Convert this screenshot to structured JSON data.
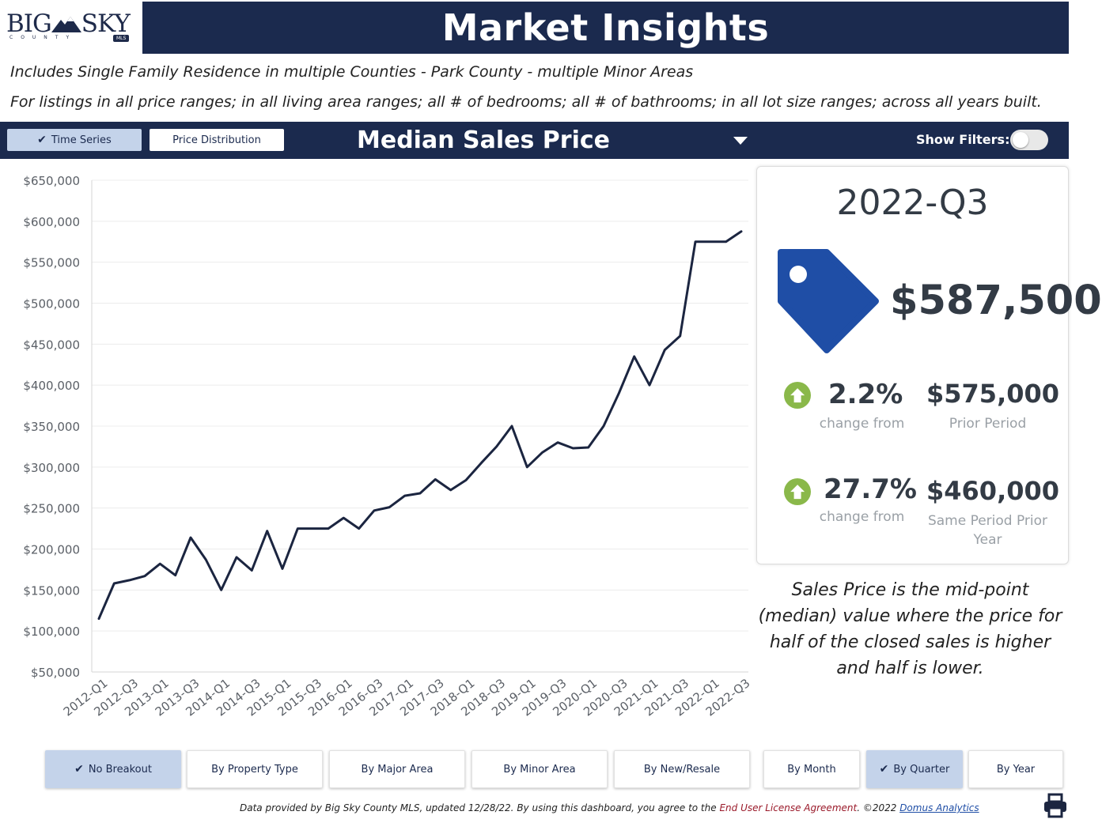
{
  "header": {
    "logo_big": "BIG",
    "logo_sky": "SKY",
    "logo_county": "COUNTY",
    "logo_mls": "MLS",
    "title": "Market Insights"
  },
  "description": {
    "line1": "Includes Single Family Residence in multiple Counties - Park County - multiple Minor Areas",
    "line2": "For listings in all price ranges; in all living area ranges; all # of bedrooms; all # of bathrooms; in all lot size ranges; across all years built."
  },
  "toolbar": {
    "time_series": "Time Series",
    "price_distribution": "Price Distribution",
    "metric": "Median Sales Price",
    "show_filters": "Show Filters:"
  },
  "summary": {
    "period": "2022-Q3",
    "value": "$587,500",
    "change1_pct": "2.2%",
    "change1_label": "change from",
    "change1_ref": "$575,000",
    "change1_ref_label": "Prior Period",
    "change2_pct": "27.7%",
    "change2_label": "change from",
    "change2_ref": "$460,000",
    "change2_ref_label": "Same Period Prior Year",
    "tag_icon": "price-tag-icon",
    "up_icon": "arrow-up-circle-icon",
    "accent": "#1f4ea6",
    "up_color": "#8ab84a"
  },
  "explanation": "Sales Price is the mid-point (median) value where the price for half of the closed sales is higher and half is lower.",
  "breakouts": {
    "no_breakout": "No Breakout",
    "by_property_type": "By Property Type",
    "by_major_area": "By Major Area",
    "by_minor_area": "By Minor Area",
    "by_new_resale": "By New/Resale",
    "by_month": "By Month",
    "by_quarter": "By Quarter",
    "by_year": "By Year"
  },
  "footer": {
    "text": "Data provided by Big Sky County MLS, updated 12/28/22.  By using this dashboard, you agree to the ",
    "license": "End User License Agreement",
    "copyright": ".  ©2022 ",
    "domus": "Domus Analytics",
    "print_icon": "printer-icon"
  },
  "chart_data": {
    "type": "line",
    "title": "",
    "xlabel": "",
    "ylabel": "",
    "ylim": [
      50000,
      650000
    ],
    "yticks": [
      50000,
      100000,
      150000,
      200000,
      250000,
      300000,
      350000,
      400000,
      450000,
      500000,
      550000,
      600000,
      650000
    ],
    "ytick_labels": [
      "$50,000",
      "$100,000",
      "$150,000",
      "$200,000",
      "$250,000",
      "$300,000",
      "$350,000",
      "$400,000",
      "$450,000",
      "$500,000",
      "$550,000",
      "$600,000",
      "$650,000"
    ],
    "xtick_labels": [
      "2012-Q1",
      "2012-Q3",
      "2013-Q1",
      "2013-Q3",
      "2014-Q1",
      "2014-Q3",
      "2015-Q1",
      "2015-Q3",
      "2016-Q1",
      "2016-Q3",
      "2017-Q1",
      "2017-Q3",
      "2018-Q1",
      "2018-Q3",
      "2019-Q1",
      "2019-Q3",
      "2020-Q1",
      "2020-Q3",
      "2021-Q1",
      "2021-Q3",
      "2022-Q1",
      "2022-Q3"
    ],
    "grid": true,
    "line_color": "#1b2540",
    "x": [
      "2012-Q1",
      "2012-Q2",
      "2012-Q3",
      "2012-Q4",
      "2013-Q1",
      "2013-Q2",
      "2013-Q3",
      "2013-Q4",
      "2014-Q1",
      "2014-Q2",
      "2014-Q3",
      "2014-Q4",
      "2015-Q1",
      "2015-Q2",
      "2015-Q3",
      "2015-Q4",
      "2016-Q1",
      "2016-Q2",
      "2016-Q3",
      "2016-Q4",
      "2017-Q1",
      "2017-Q2",
      "2017-Q3",
      "2017-Q4",
      "2018-Q1",
      "2018-Q2",
      "2018-Q3",
      "2018-Q4",
      "2019-Q1",
      "2019-Q2",
      "2019-Q3",
      "2019-Q4",
      "2020-Q1",
      "2020-Q2",
      "2020-Q3",
      "2020-Q4",
      "2021-Q1",
      "2021-Q2",
      "2021-Q3",
      "2021-Q4",
      "2022-Q1",
      "2022-Q2",
      "2022-Q3"
    ],
    "series": [
      {
        "values": [
          115000,
          158000,
          162000,
          167000,
          182000,
          168000,
          214000,
          187000,
          150000,
          190000,
          174000,
          222000,
          176000,
          225000,
          225000,
          225000,
          238000,
          225000,
          247000,
          251000,
          265000,
          268000,
          285000,
          272000,
          284000,
          305000,
          325000,
          350000,
          300000,
          318000,
          330000,
          323000,
          324000,
          350000,
          390000,
          435000,
          400000,
          443000,
          460000,
          575000,
          575000,
          575000,
          587500
        ]
      }
    ]
  }
}
